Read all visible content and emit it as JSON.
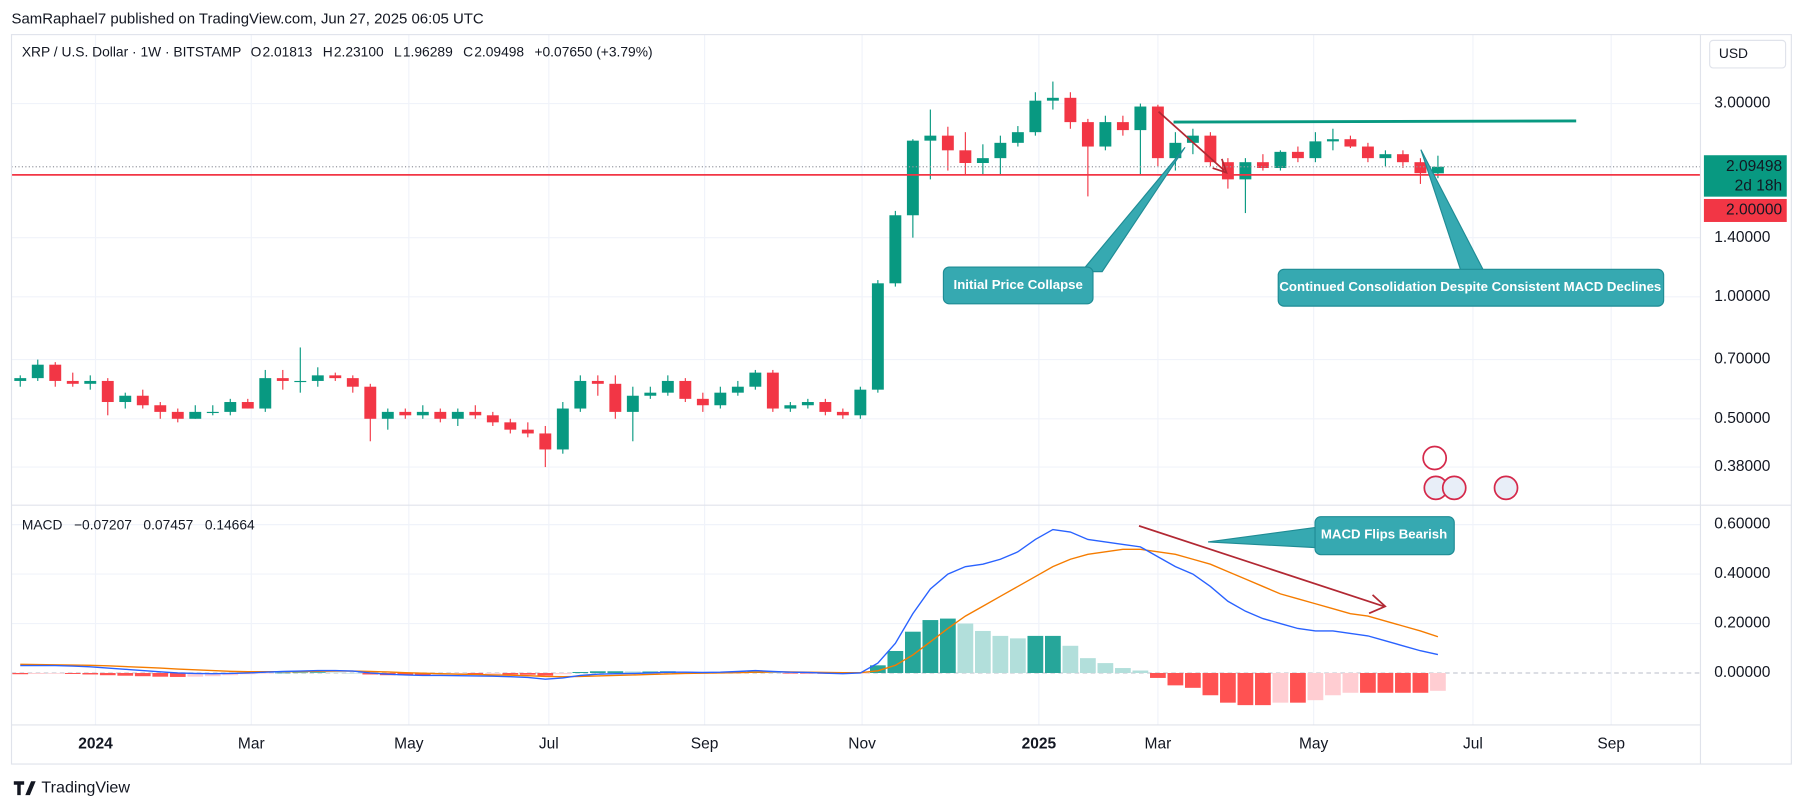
{
  "header": {
    "published": "SamRaphael7 published on TradingView.com, Jun 27, 2025 06:05 UTC",
    "brand": "TradingView"
  },
  "chart_data": [
    {
      "type": "candlestick",
      "title": "XRP / U.S. Dollar · 1W · BITSTAMP",
      "ohlc_labels": [
        {
          "key": "O",
          "value": "2.01813"
        },
        {
          "key": "H",
          "value": "2.23100"
        },
        {
          "key": "L",
          "value": "1.96289"
        },
        {
          "key": "C",
          "value": "2.09498"
        }
      ],
      "change": "+0.07650 (+3.79%)",
      "currency": "USD",
      "x": [
        0,
        1,
        2,
        3,
        4,
        5,
        6,
        7,
        8,
        9,
        10,
        11,
        12,
        13,
        14,
        15,
        16,
        17,
        18,
        19,
        20,
        21,
        22,
        23,
        24,
        25,
        26,
        27,
        28,
        29,
        30,
        31,
        32,
        33,
        34,
        35,
        36,
        37,
        38,
        39,
        40,
        41,
        42,
        43,
        44,
        45,
        46,
        47,
        48,
        49,
        50,
        51,
        52,
        53,
        54,
        55,
        56,
        57,
        58,
        59,
        60,
        61,
        62,
        63,
        64,
        65,
        66,
        67,
        68,
        69,
        70,
        71,
        72,
        73,
        74,
        75,
        76,
        77,
        78,
        79,
        80,
        81
      ],
      "open": [
        0.62,
        0.63,
        0.68,
        0.62,
        0.61,
        0.62,
        0.55,
        0.57,
        0.54,
        0.52,
        0.5,
        0.52,
        0.52,
        0.55,
        0.53,
        0.63,
        0.62,
        0.62,
        0.64,
        0.63,
        0.6,
        0.5,
        0.52,
        0.51,
        0.52,
        0.5,
        0.52,
        0.51,
        0.49,
        0.47,
        0.46,
        0.42,
        0.53,
        0.62,
        0.61,
        0.52,
        0.57,
        0.58,
        0.62,
        0.56,
        0.54,
        0.58,
        0.6,
        0.65,
        0.53,
        0.54,
        0.55,
        0.52,
        0.51,
        0.59,
        1.08,
        1.59,
        2.43,
        2.5,
        2.3,
        2.14,
        2.2,
        2.4,
        2.55,
        3.05,
        3.1,
        2.7,
        2.35,
        2.7,
        2.58,
        2.95,
        2.2,
        2.4,
        2.5,
        2.15,
        1.95,
        2.15,
        2.08,
        2.28,
        2.2,
        2.42,
        2.45,
        2.35,
        2.2,
        2.25,
        2.15,
        2.01813
      ],
      "high": [
        0.64,
        0.7,
        0.69,
        0.65,
        0.64,
        0.63,
        0.58,
        0.59,
        0.55,
        0.53,
        0.54,
        0.54,
        0.56,
        0.56,
        0.66,
        0.66,
        0.75,
        0.67,
        0.65,
        0.64,
        0.61,
        0.53,
        0.53,
        0.54,
        0.53,
        0.53,
        0.54,
        0.52,
        0.5,
        0.49,
        0.48,
        0.55,
        0.64,
        0.64,
        0.64,
        0.6,
        0.6,
        0.64,
        0.63,
        0.58,
        0.6,
        0.62,
        0.66,
        0.66,
        0.55,
        0.56,
        0.56,
        0.53,
        0.6,
        1.1,
        1.63,
        2.45,
        2.9,
        2.63,
        2.55,
        2.38,
        2.5,
        2.64,
        3.2,
        3.4,
        3.2,
        2.75,
        2.8,
        2.8,
        3.0,
        2.98,
        2.55,
        2.6,
        2.55,
        2.2,
        2.2,
        2.25,
        2.3,
        2.35,
        2.55,
        2.6,
        2.5,
        2.4,
        2.3,
        2.3,
        2.2,
        2.231
      ],
      "low": [
        0.6,
        0.62,
        0.6,
        0.6,
        0.59,
        0.51,
        0.53,
        0.53,
        0.5,
        0.49,
        0.5,
        0.51,
        0.51,
        0.53,
        0.52,
        0.59,
        0.58,
        0.6,
        0.62,
        0.58,
        0.44,
        0.47,
        0.5,
        0.5,
        0.49,
        0.48,
        0.5,
        0.48,
        0.46,
        0.45,
        0.38,
        0.41,
        0.52,
        0.57,
        0.5,
        0.44,
        0.56,
        0.57,
        0.55,
        0.52,
        0.53,
        0.57,
        0.59,
        0.52,
        0.52,
        0.53,
        0.51,
        0.5,
        0.5,
        0.58,
        1.06,
        1.4,
        1.95,
        2.05,
        2.0,
        2.0,
        2.0,
        2.35,
        2.5,
        2.9,
        2.6,
        1.77,
        2.3,
        2.5,
        2.0,
        2.1,
        2.05,
        2.25,
        2.1,
        1.85,
        1.61,
        2.05,
        2.05,
        2.15,
        2.15,
        2.3,
        2.33,
        2.15,
        2.1,
        2.08,
        1.9,
        1.96289
      ],
      "close": [
        0.63,
        0.68,
        0.62,
        0.61,
        0.62,
        0.55,
        0.57,
        0.54,
        0.52,
        0.5,
        0.52,
        0.52,
        0.55,
        0.53,
        0.63,
        0.62,
        0.62,
        0.64,
        0.63,
        0.6,
        0.5,
        0.52,
        0.51,
        0.52,
        0.5,
        0.52,
        0.51,
        0.49,
        0.47,
        0.46,
        0.42,
        0.53,
        0.62,
        0.61,
        0.52,
        0.57,
        0.58,
        0.62,
        0.56,
        0.54,
        0.58,
        0.6,
        0.65,
        0.53,
        0.54,
        0.55,
        0.52,
        0.51,
        0.59,
        1.08,
        1.59,
        2.43,
        2.5,
        2.3,
        2.14,
        2.2,
        2.4,
        2.55,
        3.05,
        3.1,
        2.7,
        2.35,
        2.7,
        2.58,
        2.95,
        2.2,
        2.4,
        2.5,
        2.15,
        1.95,
        2.15,
        2.08,
        2.28,
        2.2,
        2.42,
        2.45,
        2.35,
        2.2,
        2.25,
        2.15,
        2.02,
        2.09498
      ],
      "up_color": "#089981",
      "down_color": "#f23645",
      "xlim": [
        -0.5,
        96
      ],
      "xticks": [
        {
          "value": 4.3,
          "label": "2024"
        },
        {
          "value": 13.2,
          "label": "Mar"
        },
        {
          "value": 22.2,
          "label": "May"
        },
        {
          "value": 30.2,
          "label": "Jul"
        },
        {
          "value": 39.1,
          "label": "Sep"
        },
        {
          "value": 48.1,
          "label": "Nov"
        },
        {
          "value": 58.2,
          "label": "2025"
        },
        {
          "value": 65,
          "label": "Mar"
        },
        {
          "value": 73.9,
          "label": "May"
        },
        {
          "value": 83,
          "label": "Jul"
        },
        {
          "value": 90.9,
          "label": "Sep"
        }
      ],
      "ylim": [
        0.308,
        4.44
      ],
      "yticks": [
        {
          "value": 3,
          "label": "3.00000"
        },
        {
          "value": 1.4,
          "label": "1.40000"
        },
        {
          "value": 1,
          "label": "1.00000"
        },
        {
          "value": 0.7,
          "label": "0.70000"
        },
        {
          "value": 0.5,
          "label": "0.50000"
        },
        {
          "value": 0.38,
          "label": "0.38000"
        }
      ],
      "log_scale": true,
      "grid": true,
      "last_price_label": "2.09498",
      "countdown": "2d 18h",
      "hlines": [
        {
          "value": 2,
          "label": "2.00000",
          "color": "#f23645"
        }
      ],
      "annotations": [
        "Initial Price Collapse",
        "Continued Consolidation Despite Consistent MACD Declines"
      ]
    },
    {
      "type": "macd",
      "title": "MACD",
      "x": [
        0,
        1,
        2,
        3,
        4,
        5,
        6,
        7,
        8,
        9,
        10,
        11,
        12,
        13,
        14,
        15,
        16,
        17,
        18,
        19,
        20,
        21,
        22,
        23,
        24,
        25,
        26,
        27,
        28,
        29,
        30,
        31,
        32,
        33,
        34,
        35,
        36,
        37,
        38,
        39,
        40,
        41,
        42,
        43,
        44,
        45,
        46,
        47,
        48,
        49,
        50,
        51,
        52,
        53,
        54,
        55,
        56,
        57,
        58,
        59,
        60,
        61,
        62,
        63,
        64,
        65,
        66,
        67,
        68,
        69,
        70,
        71,
        72,
        73,
        74,
        75,
        76,
        77,
        78,
        79,
        80,
        81
      ],
      "histogram": {
        "colors": [
          "#26a69a",
          "#b2dfdb",
          "#ff5252",
          "#ffcdd2"
        ],
        "values": [
          -0.005,
          -0.004,
          -0.003,
          -0.004,
          -0.006,
          -0.009,
          -0.011,
          -0.013,
          -0.015,
          -0.016,
          -0.015,
          -0.013,
          -0.009,
          -0.005,
          -0.002,
          0.001,
          0.002,
          0.003,
          0.002,
          0,
          -0.006,
          -0.009,
          -0.009,
          -0.009,
          -0.007,
          -0.006,
          -0.006,
          -0.005,
          -0.006,
          -0.007,
          -0.011,
          -0.005,
          0.004,
          0.007,
          0.007,
          0.006,
          0.006,
          0.007,
          0.005,
          0.003,
          0.003,
          0.005,
          0.007,
          0.002,
          -0.001,
          -0.001,
          -0.003,
          -0.004,
          -0.001,
          0.031,
          0.089,
          0.167,
          0.214,
          0.22,
          0.2,
          0.17,
          0.15,
          0.14,
          0.15,
          0.15,
          0.11,
          0.06,
          0.04,
          0.02,
          0.01,
          -0.02,
          -0.05,
          -0.06,
          -0.09,
          -0.12,
          -0.13,
          -0.13,
          -0.12,
          -0.12,
          -0.11,
          -0.09,
          -0.08,
          -0.08,
          -0.08,
          -0.08,
          -0.08,
          -0.07207
        ]
      },
      "macd": {
        "color": "#2962ff",
        "values": [
          0.03,
          0.03,
          0.03,
          0.028,
          0.025,
          0.02,
          0.015,
          0.01,
          0.005,
          0,
          -0.002,
          -0.003,
          -0.002,
          0,
          0.003,
          0.006,
          0.008,
          0.01,
          0.01,
          0.008,
          0,
          -0.005,
          -0.008,
          -0.01,
          -0.01,
          -0.011,
          -0.012,
          -0.013,
          -0.015,
          -0.018,
          -0.025,
          -0.02,
          -0.01,
          -0.005,
          -0.003,
          -0.002,
          0,
          0.003,
          0.003,
          0.002,
          0.003,
          0.006,
          0.01,
          0.006,
          0.003,
          0.002,
          -0.001,
          -0.003,
          0,
          0.04,
          0.12,
          0.24,
          0.34,
          0.4,
          0.43,
          0.44,
          0.46,
          0.49,
          0.54,
          0.58,
          0.57,
          0.54,
          0.53,
          0.52,
          0.51,
          0.47,
          0.43,
          0.4,
          0.35,
          0.29,
          0.25,
          0.22,
          0.2,
          0.18,
          0.17,
          0.17,
          0.16,
          0.15,
          0.13,
          0.11,
          0.09,
          0.07457
        ]
      },
      "signal": {
        "color": "#f57c00",
        "values": [
          0.035,
          0.034,
          0.033,
          0.032,
          0.031,
          0.029,
          0.026,
          0.023,
          0.02,
          0.016,
          0.013,
          0.01,
          0.007,
          0.005,
          0.005,
          0.005,
          0.006,
          0.007,
          0.008,
          0.008,
          0.006,
          0.004,
          0.001,
          -0.001,
          -0.003,
          -0.005,
          -0.006,
          -0.008,
          -0.009,
          -0.011,
          -0.014,
          -0.015,
          -0.014,
          -0.012,
          -0.01,
          -0.008,
          -0.006,
          -0.004,
          -0.002,
          -0.001,
          0,
          0.001,
          0.003,
          0.004,
          0.004,
          0.003,
          0.002,
          0.001,
          0.001,
          0.009,
          0.031,
          0.073,
          0.126,
          0.18,
          0.23,
          0.27,
          0.31,
          0.35,
          0.39,
          0.43,
          0.46,
          0.48,
          0.49,
          0.5,
          0.5,
          0.49,
          0.48,
          0.46,
          0.44,
          0.41,
          0.38,
          0.35,
          0.32,
          0.3,
          0.28,
          0.26,
          0.24,
          0.23,
          0.21,
          0.19,
          0.17,
          0.14664
        ]
      },
      "legend": [
        {
          "label": "−0.07207",
          "color": "#f7a9b0"
        },
        {
          "label": "0.07457",
          "color": "#2962ff"
        },
        {
          "label": "0.14664",
          "color": "#f57c00"
        }
      ],
      "xlim": [
        -0.5,
        96
      ],
      "ylim": [
        -0.21,
        0.674
      ],
      "yticks": [
        {
          "value": 0.6,
          "label": "0.60000"
        },
        {
          "value": 0.4,
          "label": "0.40000"
        },
        {
          "value": 0.2,
          "label": "0.20000"
        },
        {
          "value": 0,
          "label": "0.00000"
        }
      ],
      "grid": true,
      "annotations": [
        "MACD Flips Bearish"
      ]
    }
  ]
}
